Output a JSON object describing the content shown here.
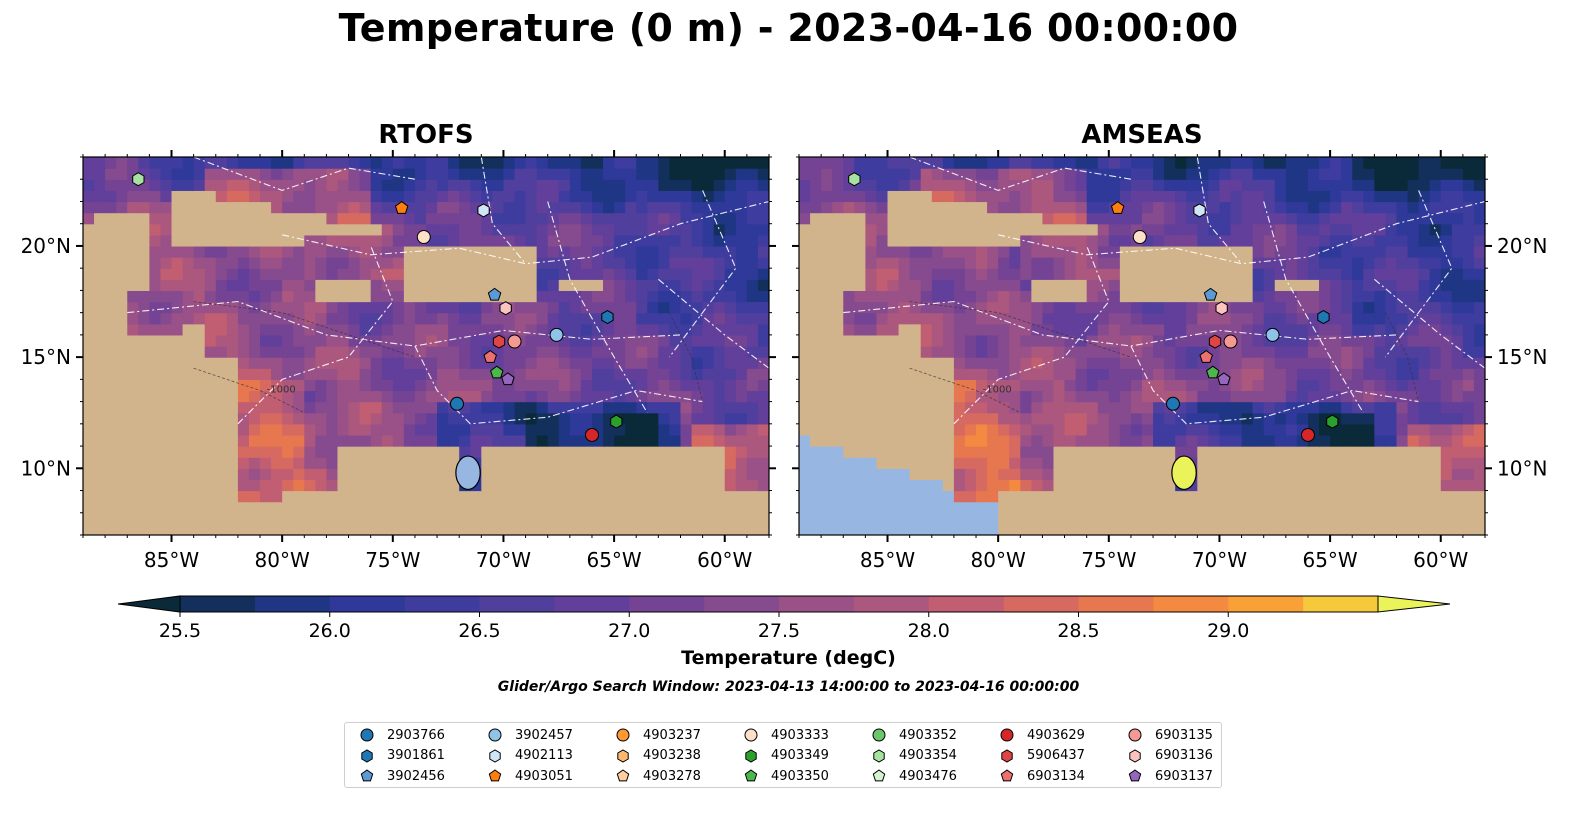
{
  "title": "Temperature (0 m) - 2023-04-16 00:00:00",
  "panels": [
    {
      "title": "RTOFS",
      "lat_labels_side": "left"
    },
    {
      "title": "AMSEAS",
      "lat_labels_side": "right"
    }
  ],
  "map": {
    "lon_range": [
      -89,
      -58
    ],
    "lat_range": [
      7,
      24
    ],
    "lon_ticks": [
      {
        "lon": -85,
        "label": "85°W"
      },
      {
        "lon": -80,
        "label": "80°W"
      },
      {
        "lon": -75,
        "label": "75°W"
      },
      {
        "lon": -70,
        "label": "70°W"
      },
      {
        "lon": -65,
        "label": "65°W"
      },
      {
        "lon": -60,
        "label": "60°W"
      }
    ],
    "lat_ticks": [
      {
        "lat": 20,
        "label": "20°N"
      },
      {
        "lat": 15,
        "label": "15°N"
      },
      {
        "lat": 10,
        "label": "10°N"
      }
    ],
    "land_color": "#d2b48c",
    "lake_color": "#97b6e1",
    "contour_label": "-1000"
  },
  "colorbar": {
    "label": "Temperature (degC)",
    "min": 25.5,
    "max": 29.0,
    "step": 0.25,
    "extend": "both",
    "ticks": [
      "25.5",
      "26.0",
      "26.5",
      "27.0",
      "27.5",
      "28.0",
      "28.5",
      "29.0"
    ],
    "colors": [
      "#0a2a3a",
      "#13305c",
      "#1f3685",
      "#2e3999",
      "#3f3c9f",
      "#513f9e",
      "#623f9b",
      "#744394",
      "#864a8e",
      "#995187",
      "#ac577e",
      "#c15e71",
      "#d66a61",
      "#e7774f",
      "#f48a42",
      "#f9a037",
      "#f6c83c",
      "#eaf45a"
    ]
  },
  "search_window": "Glider/Argo Search Window: 2023-04-13 14:00:00 to 2023-04-16 00:00:00",
  "legend": {
    "columns": [
      [
        {
          "id": "2903766",
          "marker": "circle",
          "color": "#1f77b4"
        },
        {
          "id": "3901861",
          "marker": "hexagon",
          "color": "#1f77b4"
        },
        {
          "id": "3902456",
          "marker": "pentagon",
          "color": "#5b9ad5"
        }
      ],
      [
        {
          "id": "3902457",
          "marker": "circle",
          "color": "#8fc3ea"
        },
        {
          "id": "4902113",
          "marker": "hexagon",
          "color": "#cfe6f7"
        },
        {
          "id": "4903051",
          "marker": "pentagon",
          "color": "#ff7f0e"
        }
      ],
      [
        {
          "id": "4903237",
          "marker": "circle",
          "color": "#ff9933"
        },
        {
          "id": "4903238",
          "marker": "hexagon",
          "color": "#ffb870"
        },
        {
          "id": "4903278",
          "marker": "pentagon",
          "color": "#ffcfa0"
        }
      ],
      [
        {
          "id": "4903333",
          "marker": "circle",
          "color": "#fde0c8"
        },
        {
          "id": "4903349",
          "marker": "hexagon",
          "color": "#2ca02c"
        },
        {
          "id": "4903350",
          "marker": "pentagon",
          "color": "#4cb84c"
        }
      ],
      [
        {
          "id": "4903352",
          "marker": "circle",
          "color": "#6cc66c"
        },
        {
          "id": "4903354",
          "marker": "hexagon",
          "color": "#a6e3a0"
        },
        {
          "id": "4903476",
          "marker": "pentagon",
          "color": "#d4f3cf"
        }
      ],
      [
        {
          "id": "4903629",
          "marker": "circle",
          "color": "#d62728"
        },
        {
          "id": "5906437",
          "marker": "hexagon",
          "color": "#e04545"
        },
        {
          "id": "6903134",
          "marker": "pentagon",
          "color": "#ec7070"
        }
      ],
      [
        {
          "id": "6903135",
          "marker": "circle",
          "color": "#f59a92"
        },
        {
          "id": "6903136",
          "marker": "hexagon",
          "color": "#fcc4c0"
        },
        {
          "id": "6903137",
          "marker": "pentagon",
          "color": "#9467bd"
        }
      ]
    ]
  },
  "floats": [
    {
      "id": "4903354",
      "lon": -86.5,
      "lat": 23.0
    },
    {
      "id": "4903051",
      "lon": -74.6,
      "lat": 21.7
    },
    {
      "id": "4902113",
      "lon": -70.9,
      "lat": 21.6
    },
    {
      "id": "4903333",
      "lon": -73.6,
      "lat": 20.4
    },
    {
      "id": "3902456",
      "lon": -70.4,
      "lat": 17.8
    },
    {
      "id": "6903136",
      "lon": -69.9,
      "lat": 17.2
    },
    {
      "id": "3901861",
      "lon": -65.3,
      "lat": 16.8
    },
    {
      "id": "3902457",
      "lon": -67.6,
      "lat": 16.0
    },
    {
      "id": "5906437",
      "lon": -70.2,
      "lat": 15.7
    },
    {
      "id": "6903135",
      "lon": -69.5,
      "lat": 15.7
    },
    {
      "id": "6903134",
      "lon": -70.6,
      "lat": 15.0
    },
    {
      "id": "4903350",
      "lon": -70.3,
      "lat": 14.3
    },
    {
      "id": "6903137",
      "lon": -69.8,
      "lat": 14.0
    },
    {
      "id": "2903766",
      "lon": -72.1,
      "lat": 12.9
    },
    {
      "id": "4903349",
      "lon": -64.9,
      "lat": 12.1
    },
    {
      "id": "4903629",
      "lon": -66.0,
      "lat": 11.5
    }
  ]
}
